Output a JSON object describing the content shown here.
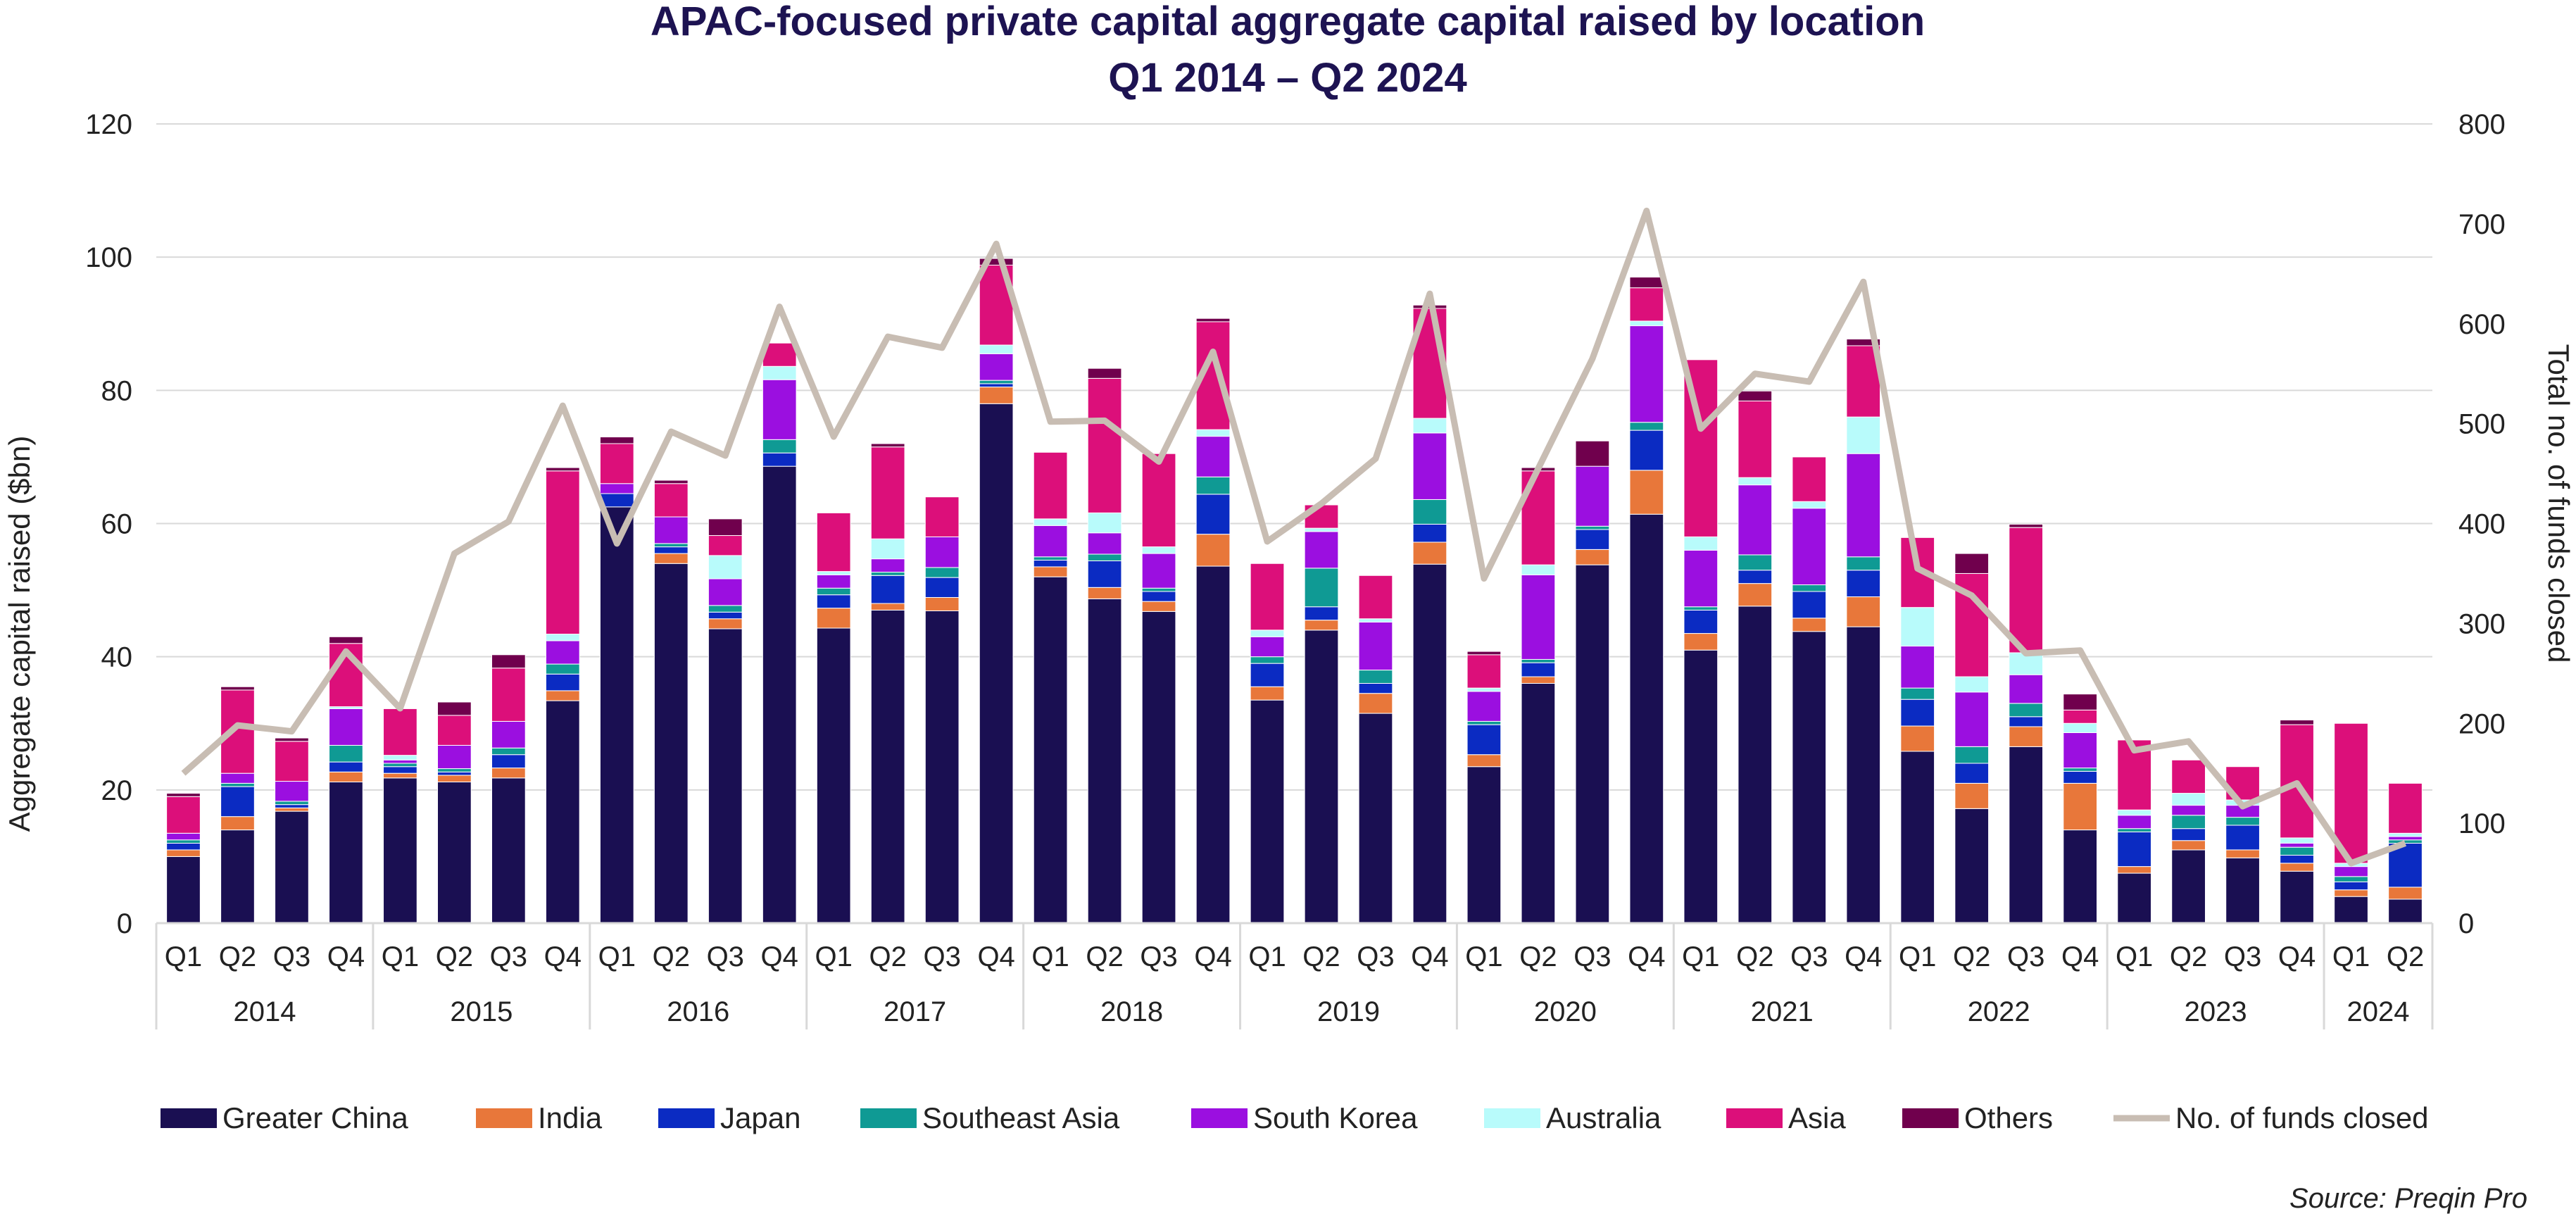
{
  "chart_data": {
    "type": "bar",
    "title": "APAC-focused private capital aggregate capital raised by location",
    "subtitle": "Q1 2014 – Q2 2024",
    "ylabel": "Aggregate capital raised ($bn)",
    "y2label": "Total no. of funds closed",
    "ylim": [
      0,
      120
    ],
    "y2lim": [
      0,
      800
    ],
    "yticks": [
      "0",
      "20",
      "40",
      "60",
      "80",
      "100",
      "120"
    ],
    "y2ticks": [
      "0",
      "100",
      "200",
      "300",
      "400",
      "500",
      "600",
      "700",
      "800"
    ],
    "grid": true,
    "legend_position": "bottom",
    "source": "Source: Preqin Pro",
    "years": [
      {
        "label": "2014",
        "quarters": [
          "Q1",
          "Q2",
          "Q3",
          "Q4"
        ]
      },
      {
        "label": "2015",
        "quarters": [
          "Q1",
          "Q2",
          "Q3",
          "Q4"
        ]
      },
      {
        "label": "2016",
        "quarters": [
          "Q1",
          "Q2",
          "Q3",
          "Q4"
        ]
      },
      {
        "label": "2017",
        "quarters": [
          "Q1",
          "Q2",
          "Q3",
          "Q4"
        ]
      },
      {
        "label": "2018",
        "quarters": [
          "Q1",
          "Q2",
          "Q3",
          "Q4"
        ]
      },
      {
        "label": "2019",
        "quarters": [
          "Q1",
          "Q2",
          "Q3",
          "Q4"
        ]
      },
      {
        "label": "2020",
        "quarters": [
          "Q1",
          "Q2",
          "Q3",
          "Q4"
        ]
      },
      {
        "label": "2021",
        "quarters": [
          "Q1",
          "Q2",
          "Q3",
          "Q4"
        ]
      },
      {
        "label": "2022",
        "quarters": [
          "Q1",
          "Q2",
          "Q3",
          "Q4"
        ]
      },
      {
        "label": "2023",
        "quarters": [
          "Q1",
          "Q2",
          "Q3",
          "Q4"
        ]
      },
      {
        "label": "2024",
        "quarters": [
          "Q1",
          "Q2"
        ]
      }
    ],
    "series": [
      {
        "name": "Greater China",
        "color": "#1a0f52",
        "values": [
          10,
          14,
          16.8,
          21.2,
          21.8,
          21.2,
          21.8,
          33.4,
          62.5,
          54,
          44.2,
          68.6,
          44.3,
          47,
          46.9,
          78,
          52,
          48.7,
          46.8,
          53.6,
          33.5,
          44,
          31.5,
          53.9,
          23.5,
          36,
          53.8,
          61.4,
          41,
          47.6,
          43.8,
          44.5,
          25.8,
          17.2,
          26.5,
          14,
          7.5,
          11,
          9.8,
          7.8,
          4,
          3.6
        ]
      },
      {
        "name": "India",
        "color": "#e8773a",
        "values": [
          1,
          2,
          0.5,
          1.5,
          0.7,
          1,
          1.5,
          1.5,
          0,
          1.5,
          1.5,
          0,
          3,
          1,
          2,
          2.5,
          1.5,
          1.7,
          1.5,
          4.8,
          2,
          1.5,
          3,
          3.3,
          1.8,
          1,
          2.3,
          6.6,
          2.5,
          3.4,
          2,
          4.5,
          3.8,
          3.8,
          3,
          7,
          1,
          1.4,
          1.2,
          1.2,
          1,
          1.8
        ]
      },
      {
        "name": "Japan",
        "color": "#0b2bc2",
        "values": [
          1,
          4.5,
          0.5,
          1.5,
          1,
          0.5,
          2,
          2.5,
          2,
          1,
          1,
          2,
          2,
          4.2,
          3,
          0.5,
          1,
          4,
          1.5,
          6,
          3.5,
          2,
          1.5,
          2.7,
          4.5,
          2.1,
          3,
          6,
          3.5,
          2,
          4,
          4,
          4,
          3,
          1.5,
          1.8,
          5.2,
          1.8,
          3.7,
          1.2,
          1.2,
          6.6
        ]
      },
      {
        "name": "Southeast Asia",
        "color": "#0f9a94",
        "values": [
          0.5,
          0.5,
          0.5,
          2.5,
          0.5,
          0.5,
          1,
          1.5,
          0,
          0.5,
          1,
          2,
          1,
          0.5,
          1.5,
          0.5,
          0.5,
          1,
          0.5,
          2.6,
          1,
          5.8,
          2,
          3.7,
          0.5,
          0.5,
          0.5,
          1.2,
          0.5,
          2.3,
          1,
          2,
          1.7,
          2.5,
          2,
          0.5,
          0.5,
          2,
          1.2,
          1.2,
          0.8,
          0.5
        ]
      },
      {
        "name": "South Korea",
        "color": "#9b0fe0",
        "values": [
          1,
          1.5,
          3,
          5.5,
          0.5,
          3.5,
          4,
          3.5,
          1.5,
          4,
          4,
          9,
          2,
          2,
          4.6,
          4,
          4.7,
          3.2,
          5.2,
          6.1,
          3,
          5.5,
          7.2,
          10,
          4.5,
          12.7,
          9,
          14.5,
          8.5,
          10.5,
          11.5,
          15.5,
          6.3,
          8.2,
          4.3,
          5.3,
          2,
          1.5,
          1.8,
          0.6,
          1.5,
          0.5
        ]
      },
      {
        "name": "Australia",
        "color": "#b8fbfb",
        "values": [
          0,
          0,
          0,
          0.3,
          0.7,
          0,
          0,
          1,
          0,
          0,
          3.5,
          2,
          0.5,
          3,
          0,
          1.3,
          1,
          3,
          1,
          1,
          1,
          0.5,
          0.5,
          2.2,
          0.5,
          1.5,
          0,
          0.7,
          2,
          1.1,
          1,
          5.5,
          5.8,
          2.3,
          3.3,
          1.4,
          0.8,
          1.8,
          0.8,
          0.8,
          0.5,
          0.5
        ]
      },
      {
        "name": "Asia",
        "color": "#dc0f7a",
        "values": [
          5.5,
          12.5,
          6,
          9.5,
          7,
          4.5,
          8,
          24.5,
          6,
          5,
          3,
          3.5,
          8.8,
          13.8,
          6,
          12,
          10,
          20.2,
          14,
          16.2,
          10,
          3.5,
          6.5,
          16.5,
          5,
          14.1,
          0,
          5,
          26.6,
          11.5,
          6.7,
          10.7,
          10.5,
          15.5,
          18.8,
          2,
          10.5,
          5,
          5,
          17,
          21,
          7.5
        ]
      },
      {
        "name": "Others",
        "color": "#70004d",
        "values": [
          0.5,
          0.5,
          0.5,
          1,
          0,
          2,
          2,
          0.5,
          1,
          0.5,
          2.5,
          0,
          0,
          0.5,
          0,
          1,
          0,
          1.5,
          0,
          0.5,
          0,
          0,
          0,
          0.5,
          0.5,
          0.5,
          3.8,
          1.6,
          0,
          1.5,
          0,
          1,
          0,
          3,
          0.5,
          2.4,
          0,
          0,
          0,
          0.7,
          0,
          0
        ]
      }
    ],
    "line_series": {
      "name": "No. of funds closed",
      "color": "#c8bdb3",
      "values": [
        150,
        198,
        192,
        272,
        215,
        370,
        402,
        518,
        380,
        492,
        468,
        617,
        487,
        587,
        576,
        680,
        502,
        503,
        462,
        572,
        382,
        420,
        465,
        630,
        345,
        455,
        565,
        713,
        495,
        550,
        542,
        642,
        355,
        328,
        270,
        273,
        173,
        182,
        117,
        140,
        60,
        80
      ]
    }
  }
}
